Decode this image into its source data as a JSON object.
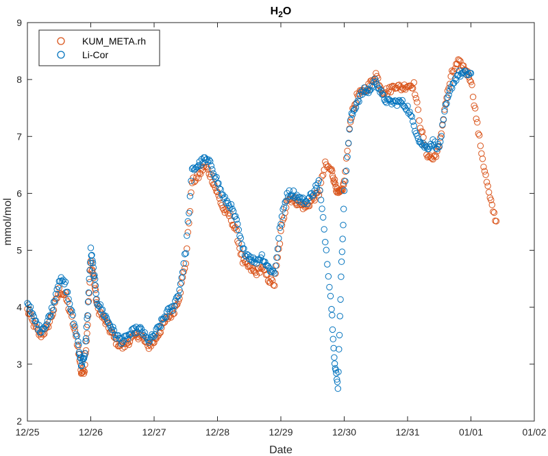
{
  "chart_data": {
    "type": "scatter",
    "title": "H",
    "title_subscript": "2",
    "title_suffix": "O",
    "xlabel": "Date",
    "ylabel": "mmol/mol",
    "xlim": [
      0,
      8
    ],
    "ylim": [
      2,
      9
    ],
    "x_ticks": [
      0,
      1,
      2,
      3,
      4,
      5,
      6,
      7,
      8
    ],
    "x_tick_labels": [
      "12/25",
      "12/26",
      "12/27",
      "12/28",
      "12/29",
      "12/30",
      "12/31",
      "01/01",
      "01/02"
    ],
    "y_ticks": [
      2,
      3,
      4,
      5,
      6,
      7,
      8,
      9
    ],
    "y_tick_labels": [
      "2",
      "3",
      "4",
      "5",
      "6",
      "7",
      "8",
      "9"
    ],
    "grid": false,
    "legend_position": "top-left",
    "marker": "open-circle",
    "series": [
      {
        "name": "KUM_META.rh",
        "color": "#D95319",
        "x": [
          0.0,
          0.1,
          0.2,
          0.3,
          0.4,
          0.5,
          0.6,
          0.7,
          0.8,
          0.85,
          0.9,
          0.95,
          1.0,
          1.05,
          1.1,
          1.2,
          1.3,
          1.4,
          1.5,
          1.6,
          1.7,
          1.8,
          1.9,
          2.0,
          2.1,
          2.2,
          2.3,
          2.4,
          2.5,
          2.6,
          2.7,
          2.8,
          2.9,
          3.0,
          3.1,
          3.2,
          3.3,
          3.4,
          3.5,
          3.6,
          3.7,
          3.8,
          3.9,
          4.0,
          4.1,
          4.2,
          4.3,
          4.4,
          4.5,
          4.6,
          4.7,
          4.8,
          4.85,
          4.9,
          4.95,
          5.0,
          5.1,
          5.2,
          5.3,
          5.4,
          5.5,
          5.6,
          5.7,
          5.8,
          5.9,
          6.0,
          6.1,
          6.2,
          6.3,
          6.4,
          6.5,
          6.6,
          6.7,
          6.8,
          6.9,
          7.0,
          7.1,
          7.2,
          7.3,
          7.4
        ],
        "y": [
          3.95,
          3.7,
          3.5,
          3.6,
          3.9,
          4.3,
          4.2,
          3.8,
          3.3,
          2.85,
          2.9,
          3.7,
          4.8,
          4.5,
          4.0,
          3.8,
          3.6,
          3.4,
          3.3,
          3.4,
          3.5,
          3.5,
          3.3,
          3.4,
          3.6,
          3.8,
          3.9,
          4.2,
          4.8,
          6.2,
          6.3,
          6.5,
          6.3,
          6.0,
          5.7,
          5.6,
          5.3,
          4.8,
          4.7,
          4.6,
          4.7,
          4.5,
          4.4,
          5.3,
          5.9,
          5.9,
          5.8,
          5.75,
          5.9,
          6.0,
          6.5,
          6.4,
          6.2,
          6.0,
          6.0,
          6.2,
          7.3,
          7.7,
          7.8,
          7.9,
          8.1,
          7.8,
          7.8,
          7.9,
          7.85,
          7.9,
          7.9,
          7.2,
          6.7,
          6.6,
          6.8,
          7.6,
          8.1,
          8.3,
          8.2,
          8.0,
          7.2,
          6.5,
          5.9,
          5.5
        ]
      },
      {
        "name": "Li-Cor",
        "color": "#0072BD",
        "x": [
          0.0,
          0.1,
          0.2,
          0.3,
          0.4,
          0.5,
          0.6,
          0.7,
          0.8,
          0.85,
          0.9,
          0.95,
          1.0,
          1.05,
          1.1,
          1.2,
          1.3,
          1.4,
          1.5,
          1.6,
          1.7,
          1.8,
          1.9,
          2.0,
          2.1,
          2.2,
          2.3,
          2.4,
          2.5,
          2.6,
          2.7,
          2.8,
          2.9,
          3.0,
          3.1,
          3.2,
          3.3,
          3.4,
          3.5,
          3.6,
          3.7,
          3.8,
          3.9,
          4.0,
          4.1,
          4.2,
          4.3,
          4.4,
          4.5,
          4.6,
          4.7,
          4.8,
          4.85,
          4.9,
          4.95,
          5.0,
          5.1,
          5.2,
          5.3,
          5.4,
          5.5,
          5.6,
          5.7,
          5.8,
          5.9,
          6.0,
          6.1,
          6.2,
          6.3,
          6.4,
          6.5,
          6.6,
          6.7,
          6.8,
          6.9,
          7.0
        ],
        "y": [
          4.1,
          3.8,
          3.6,
          3.7,
          4.0,
          4.5,
          4.4,
          3.9,
          3.4,
          3.0,
          3.1,
          3.9,
          5.0,
          4.6,
          4.1,
          3.9,
          3.7,
          3.5,
          3.4,
          3.5,
          3.6,
          3.6,
          3.4,
          3.5,
          3.7,
          3.9,
          4.0,
          4.3,
          5.0,
          6.4,
          6.5,
          6.6,
          6.5,
          6.2,
          5.9,
          5.8,
          5.5,
          5.0,
          4.9,
          4.8,
          4.9,
          4.7,
          4.6,
          5.5,
          6.0,
          6.0,
          5.9,
          5.85,
          6.0,
          6.2,
          5.2,
          4.0,
          3.0,
          2.6,
          4.5,
          6.0,
          7.3,
          7.6,
          7.8,
          7.8,
          8.0,
          7.7,
          7.6,
          7.6,
          7.6,
          7.5,
          7.2,
          6.9,
          6.8,
          6.9,
          6.8,
          7.5,
          7.9,
          8.1,
          8.1,
          8.1
        ]
      }
    ]
  }
}
